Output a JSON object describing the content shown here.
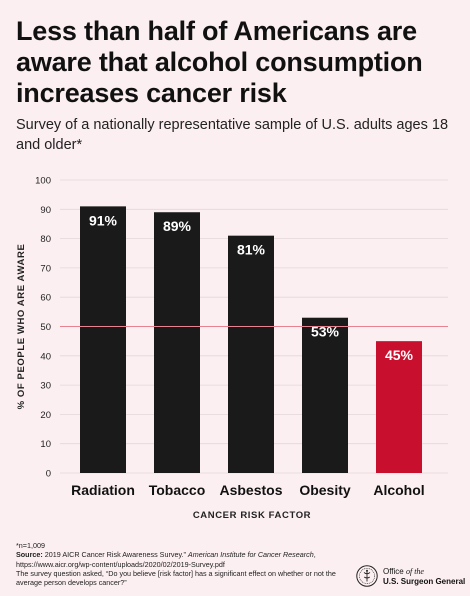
{
  "header": {
    "title": "Less than half of Americans are aware that alcohol consumption increases cancer risk",
    "subtitle": "Survey of a nationally representative sample of U.S. adults ages 18 and older*"
  },
  "chart_data": {
    "type": "bar",
    "categories": [
      "Radiation",
      "Tobacco",
      "Asbestos",
      "Obesity",
      "Alcohol"
    ],
    "values": [
      91,
      89,
      81,
      53,
      45
    ],
    "data_labels": [
      "91%",
      "89%",
      "81%",
      "53%",
      "45%"
    ],
    "xlabel": "CANCER RISK FACTOR",
    "ylabel": "% OF PEOPLE WHO ARE AWARE",
    "ylim": [
      0,
      100
    ],
    "yticks": [
      0,
      10,
      20,
      30,
      40,
      50,
      60,
      70,
      80,
      90,
      100
    ],
    "reference_line": 50,
    "grid": true,
    "colors": {
      "bar": "#1a1a1a",
      "highlight_bar": "#c8102e",
      "reference_line": "#e8828f",
      "grid": "#e3d7da",
      "bar_label": "#ffffff"
    },
    "highlight_index": 4
  },
  "footnote": {
    "n": "*n=1,009",
    "source_label": "Source:",
    "source_text": " 2019 AICR Cancer Risk Awareness Survey.” ",
    "source_journal": "American Institute for Cancer Research",
    "source_url": ", https://www.aicr.org/wp-content/uploads/2020/02/2019-Survey.pdf",
    "question": "The survey question asked, “Do you believe [risk factor] has a significant effect on whether or not the average person develops cancer?”"
  },
  "logo": {
    "line1_prefix": "Office ",
    "line1_em": "of the",
    "line2": "U.S. Surgeon General",
    "icon": "surgeon-general-seal-icon"
  }
}
